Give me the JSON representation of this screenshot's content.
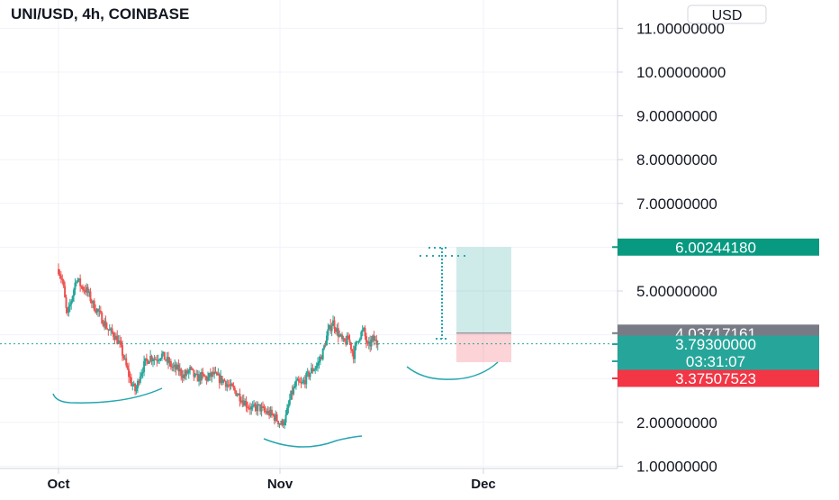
{
  "header": {
    "title": "UNI/USD, 4h, COINBASE",
    "currency_button": "USD"
  },
  "chart_data": {
    "type": "candlestick",
    "symbol": "UNI/USD",
    "interval": "4h",
    "exchange": "COINBASE",
    "y_axis": {
      "scale": "linear",
      "ticks": [
        {
          "value": 11,
          "label": "11.00000000"
        },
        {
          "value": 10,
          "label": "10.00000000"
        },
        {
          "value": 9,
          "label": "9.00000000"
        },
        {
          "value": 8,
          "label": "8.00000000"
        },
        {
          "value": 7,
          "label": "7.00000000"
        },
        {
          "value": 5,
          "label": "5.00000000"
        },
        {
          "value": 2,
          "label": "2.00000000"
        },
        {
          "value": 1,
          "label": "1.00000000"
        }
      ]
    },
    "x_axis": {
      "ticks": [
        "Oct",
        "Nov",
        "Dec"
      ]
    },
    "grid": true,
    "price_labels": [
      {
        "id": "target",
        "value": 6.0024418,
        "label": "6.00244180",
        "color": "#089981"
      },
      {
        "id": "entry",
        "value": 4.03717161,
        "label": "4.03717161",
        "color": "#787b86"
      },
      {
        "id": "last",
        "value": 3.793,
        "label": "3.79300000",
        "color": "#26a69a"
      },
      {
        "id": "countdown",
        "value": 3.793,
        "label": "03:31:07",
        "color": "#26a69a"
      },
      {
        "id": "stop",
        "value": 3.37507523,
        "label": "3.37507523",
        "color": "#f23645"
      }
    ],
    "last_price": 3.793,
    "position": {
      "type": "long",
      "entry": 4.03717161,
      "target": 6.0024418,
      "stop": 3.37507523
    },
    "price_path": [
      {
        "t": 0.0,
        "p": 5.5
      },
      {
        "t": 0.6,
        "p": 5.2
      },
      {
        "t": 1.2,
        "p": 4.4
      },
      {
        "t": 1.8,
        "p": 4.8
      },
      {
        "t": 2.5,
        "p": 5.3
      },
      {
        "t": 3.2,
        "p": 5.1
      },
      {
        "t": 4.0,
        "p": 5.0
      },
      {
        "t": 4.8,
        "p": 4.7
      },
      {
        "t": 5.6,
        "p": 4.5
      },
      {
        "t": 6.3,
        "p": 4.3
      },
      {
        "t": 7.0,
        "p": 4.1
      },
      {
        "t": 7.8,
        "p": 4.0
      },
      {
        "t": 8.5,
        "p": 3.8
      },
      {
        "t": 9.1,
        "p": 3.5
      },
      {
        "t": 9.6,
        "p": 3.2
      },
      {
        "t": 10.2,
        "p": 2.9
      },
      {
        "t": 10.8,
        "p": 2.7
      },
      {
        "t": 11.4,
        "p": 3.1
      },
      {
        "t": 12.1,
        "p": 3.35
      },
      {
        "t": 12.8,
        "p": 3.5
      },
      {
        "t": 13.6,
        "p": 3.45
      },
      {
        "t": 14.4,
        "p": 3.55
      },
      {
        "t": 15.2,
        "p": 3.4
      },
      {
        "t": 16.0,
        "p": 3.25
      },
      {
        "t": 16.8,
        "p": 3.2
      },
      {
        "t": 17.6,
        "p": 3.05
      },
      {
        "t": 18.4,
        "p": 3.2
      },
      {
        "t": 19.2,
        "p": 3.0
      },
      {
        "t": 20.0,
        "p": 3.05
      },
      {
        "t": 20.8,
        "p": 3.0
      },
      {
        "t": 21.6,
        "p": 3.1
      },
      {
        "t": 22.4,
        "p": 3.0
      },
      {
        "t": 23.2,
        "p": 2.95
      },
      {
        "t": 24.0,
        "p": 2.8
      },
      {
        "t": 24.8,
        "p": 2.7
      },
      {
        "t": 25.6,
        "p": 2.55
      },
      {
        "t": 26.4,
        "p": 2.4
      },
      {
        "t": 27.2,
        "p": 2.3
      },
      {
        "t": 28.0,
        "p": 2.35
      },
      {
        "t": 28.8,
        "p": 2.25
      },
      {
        "t": 29.6,
        "p": 2.2
      },
      {
        "t": 30.4,
        "p": 2.1
      },
      {
        "t": 31.2,
        "p": 1.95
      },
      {
        "t": 31.8,
        "p": 2.1
      },
      {
        "t": 32.5,
        "p": 2.6
      },
      {
        "t": 33.3,
        "p": 2.9
      },
      {
        "t": 34.0,
        "p": 2.85
      },
      {
        "t": 34.8,
        "p": 3.05
      },
      {
        "t": 35.5,
        "p": 3.2
      },
      {
        "t": 36.2,
        "p": 3.3
      },
      {
        "t": 37.0,
        "p": 3.6
      },
      {
        "t": 37.7,
        "p": 4.05
      },
      {
        "t": 38.4,
        "p": 4.3
      },
      {
        "t": 39.1,
        "p": 4.05
      },
      {
        "t": 39.9,
        "p": 3.8
      },
      {
        "t": 40.6,
        "p": 3.9
      },
      {
        "t": 41.3,
        "p": 3.55
      },
      {
        "t": 42.0,
        "p": 3.95
      },
      {
        "t": 42.7,
        "p": 4.1
      },
      {
        "t": 43.3,
        "p": 3.7
      },
      {
        "t": 44.0,
        "p": 3.9
      },
      {
        "t": 44.7,
        "p": 3.79
      }
    ],
    "annotations": [
      {
        "type": "curve",
        "label": ""
      },
      {
        "type": "curve",
        "label": ""
      },
      {
        "type": "curve",
        "label": ""
      },
      {
        "type": "dotted-arrow",
        "label": ""
      }
    ]
  }
}
